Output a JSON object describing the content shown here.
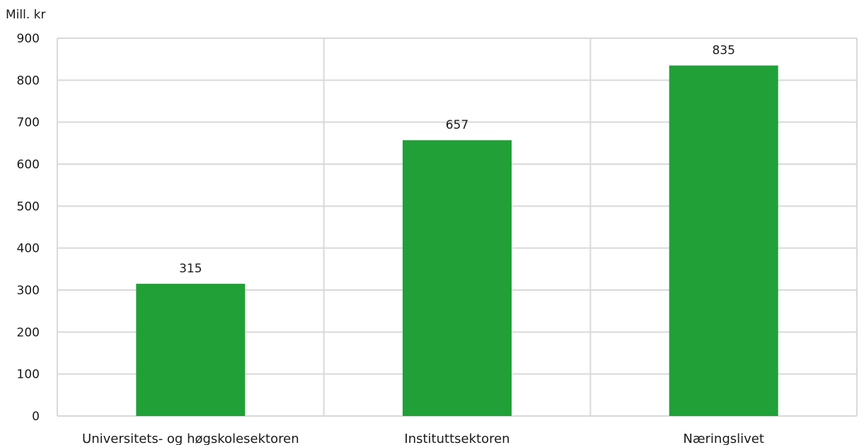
{
  "chart_data": {
    "type": "bar",
    "ylabel": "Mill. kr",
    "categories": [
      "Universitets- og høgskolesektoren",
      "Instituttsektoren",
      "Næringslivet"
    ],
    "values": [
      315,
      657,
      835
    ],
    "ylim": [
      0,
      900
    ],
    "yticks": [
      0,
      100,
      200,
      300,
      400,
      500,
      600,
      700,
      800,
      900
    ],
    "grid": true,
    "data_labels": true,
    "bar_color": "#21a038",
    "grid_color": "#d9d9d9"
  }
}
